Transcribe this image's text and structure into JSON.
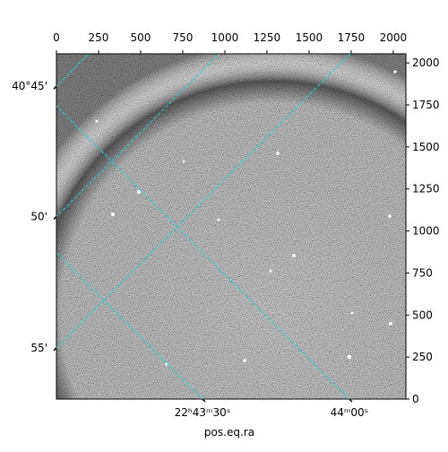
{
  "chart_data": {
    "type": "image",
    "xlabel": "pos.eq.ra",
    "colormap": "gray",
    "grid_color": "#22d3d3",
    "xlim": [
      0,
      2075
    ],
    "ylim": [
      0,
      2054
    ],
    "xticks": [
      0,
      250,
      500,
      750,
      1000,
      1250,
      1500,
      1750,
      2000
    ],
    "yticks": [
      0,
      250,
      500,
      750,
      1000,
      1250,
      1500,
      1750,
      2000
    ],
    "ra_ticks": [
      {
        "value": 867,
        "label": "22ʰ43ᵐ30ˢ"
      },
      {
        "value": 1739,
        "label": "44ᵐ00ˢ"
      }
    ],
    "dec_ticks": [
      {
        "value": 1861,
        "label": "40°45'"
      },
      {
        "value": 1086,
        "label": "50'"
      },
      {
        "value": 305,
        "label": "55'"
      }
    ]
  }
}
